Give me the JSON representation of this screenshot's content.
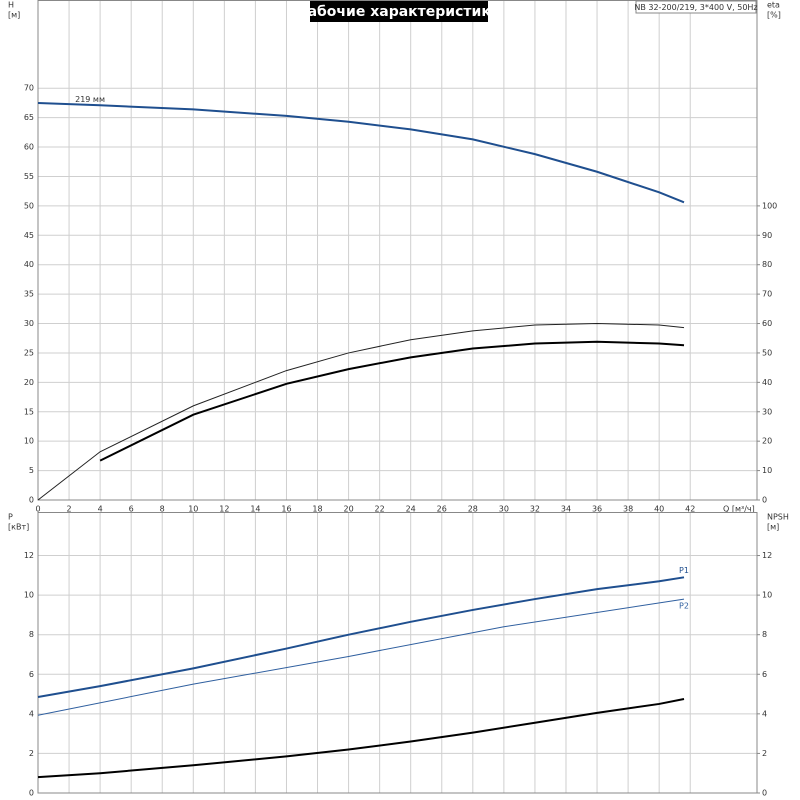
{
  "chart_data": [
    {
      "type": "line",
      "title": "Рабочие характеристики",
      "subtitle": "NB 32-200/219, 3*400 V, 50Hz",
      "x_label": "Q [м³/ч]",
      "y_label": "H",
      "y_unit": "[м]",
      "y2_label": "eta",
      "y2_unit": "[%]",
      "xlim": [
        0,
        46.3
      ],
      "xticks": [
        0,
        2,
        4,
        6,
        8,
        10,
        12,
        14,
        16,
        18,
        20,
        22,
        24,
        26,
        28,
        30,
        32,
        34,
        36,
        38,
        40,
        42
      ],
      "ylim": [
        0,
        85
      ],
      "yticks": [
        0,
        5,
        10,
        15,
        20,
        25,
        30,
        35,
        40,
        45,
        50,
        55,
        60,
        65,
        70
      ],
      "y2lim": [
        0,
        170
      ],
      "y2ticks": [
        0,
        10,
        20,
        30,
        40,
        50,
        60,
        70,
        80,
        90,
        100
      ],
      "grid": true,
      "series": [
        {
          "name": "219 мм",
          "color": "#1f4f8f",
          "width": 2,
          "x": [
            0,
            4,
            10,
            16,
            20,
            24,
            28,
            32,
            36,
            40,
            41.6
          ],
          "values": [
            67.5,
            67.1,
            66.4,
            65.3,
            64.3,
            63,
            61.3,
            58.8,
            55.8,
            52.3,
            50.6
          ]
        },
        {
          "color": "#222222",
          "width": 1,
          "axis": "y2",
          "x": [
            0,
            4,
            10,
            16,
            20,
            24,
            28,
            32,
            36,
            40,
            41.6
          ],
          "values": [
            0,
            16.4,
            32,
            44,
            50,
            54.5,
            57.5,
            59.5,
            60,
            59.5,
            58.6
          ]
        },
        {
          "color": "#000000",
          "width": 2,
          "axis": "y2",
          "x": [
            4,
            10,
            16,
            20,
            24,
            28,
            32,
            36,
            40,
            41.6
          ],
          "values": [
            13.4,
            29,
            39.5,
            44.5,
            48.5,
            51.5,
            53.2,
            53.8,
            53.2,
            52.6
          ]
        }
      ]
    },
    {
      "type": "line",
      "y_label": "P",
      "y_unit": "[кВт]",
      "y2_label": "NPSH",
      "y2_unit": "[м]",
      "xlim": [
        0,
        46.3
      ],
      "ylim": [
        0,
        14.2
      ],
      "yticks": [
        0,
        2,
        4,
        6,
        8,
        10,
        12
      ],
      "y2lim": [
        0,
        14.2
      ],
      "y2ticks": [
        0,
        2,
        4,
        6,
        8,
        10,
        12
      ],
      "grid": true,
      "series": [
        {
          "name": "P1",
          "color": "#1f4f8f",
          "width": 2,
          "x": [
            0,
            4,
            10,
            16,
            20,
            24,
            28,
            32,
            36,
            40,
            41.6
          ],
          "values": [
            4.85,
            5.4,
            6.3,
            7.3,
            8.0,
            8.65,
            9.25,
            9.8,
            10.3,
            10.7,
            10.9
          ]
        },
        {
          "name": "P2",
          "color": "#2f5f9f",
          "width": 1,
          "x": [
            0,
            10,
            20,
            30,
            41.6
          ],
          "values": [
            3.93,
            5.5,
            6.9,
            8.4,
            9.8
          ]
        },
        {
          "color": "#000000",
          "width": 2,
          "axis": "y2",
          "x": [
            0,
            4,
            10,
            16,
            20,
            24,
            28,
            32,
            36,
            40,
            41.6
          ],
          "values": [
            0.8,
            1.0,
            1.4,
            1.85,
            2.2,
            2.6,
            3.05,
            3.55,
            4.05,
            4.5,
            4.75
          ]
        }
      ]
    }
  ]
}
